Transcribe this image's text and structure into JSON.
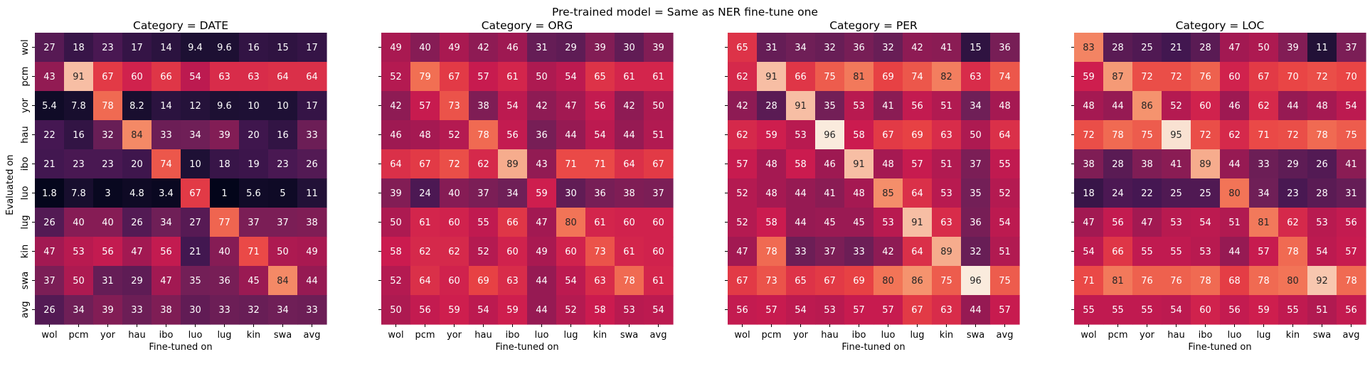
{
  "figure": {
    "suptitle": "Pre-trained model = Same as NER fine-tune one",
    "xlabel": "Fine-tuned on",
    "ylabel": "Evaluated on"
  },
  "chart_data": [
    {
      "type": "heatmap",
      "title": "Category = DATE",
      "x": [
        "wol",
        "pcm",
        "yor",
        "hau",
        "ibo",
        "luo",
        "lug",
        "kin",
        "swa",
        "avg"
      ],
      "y": [
        "wol",
        "pcm",
        "yor",
        "hau",
        "ibo",
        "luo",
        "lug",
        "kin",
        "swa",
        "avg"
      ],
      "values": [
        [
          27,
          18,
          23,
          17,
          14,
          9.4,
          9.6,
          16,
          15,
          17
        ],
        [
          43,
          91,
          67,
          60,
          66,
          54,
          63,
          63,
          64,
          64
        ],
        [
          5.4,
          7.8,
          78,
          8.2,
          14,
          12,
          9.6,
          10,
          10,
          17
        ],
        [
          22,
          16,
          32,
          84,
          33,
          34,
          39,
          20,
          16,
          33
        ],
        [
          21,
          23,
          23,
          20,
          74,
          10,
          18,
          19,
          23,
          26
        ],
        [
          1.8,
          7.8,
          3,
          4.8,
          3.4,
          67,
          1,
          5.6,
          5,
          11
        ],
        [
          26,
          40,
          40,
          26,
          34,
          27,
          77,
          37,
          37,
          38
        ],
        [
          47,
          53,
          56,
          47,
          56,
          21,
          40,
          71,
          50,
          49
        ],
        [
          37,
          50,
          31,
          29,
          47,
          35,
          36,
          45,
          84,
          44
        ],
        [
          26,
          34,
          39,
          33,
          38,
          30,
          33,
          32,
          34,
          33
        ]
      ],
      "xlabel": "Fine-tuned on",
      "ylabel": "Evaluated on",
      "colormap": "rocket"
    },
    {
      "type": "heatmap",
      "title": "Category = ORG",
      "x": [
        "wol",
        "pcm",
        "yor",
        "hau",
        "ibo",
        "luo",
        "lug",
        "kin",
        "swa",
        "avg"
      ],
      "y": [
        "wol",
        "pcm",
        "yor",
        "hau",
        "ibo",
        "luo",
        "lug",
        "kin",
        "swa",
        "avg"
      ],
      "values": [
        [
          49,
          40,
          49,
          42,
          46,
          31,
          29,
          39,
          30,
          39
        ],
        [
          52,
          79,
          67,
          57,
          61,
          50,
          54,
          65,
          61,
          61
        ],
        [
          42,
          57,
          73,
          38,
          54,
          42,
          47,
          56,
          42,
          50
        ],
        [
          46,
          48,
          52,
          78,
          56,
          36,
          44,
          54,
          44,
          51
        ],
        [
          64,
          67,
          72,
          62,
          89,
          43,
          71,
          71,
          64,
          67
        ],
        [
          39,
          24,
          40,
          37,
          34,
          59,
          30,
          36,
          38,
          37
        ],
        [
          50,
          61,
          60,
          55,
          66,
          47,
          80,
          61,
          60,
          60
        ],
        [
          58,
          62,
          62,
          52,
          60,
          49,
          60,
          73,
          61,
          60
        ],
        [
          52,
          64,
          60,
          69,
          63,
          44,
          54,
          63,
          78,
          61
        ],
        [
          50,
          56,
          59,
          54,
          59,
          44,
          52,
          58,
          53,
          54
        ]
      ],
      "xlabel": "Fine-tuned on",
      "colormap": "rocket"
    },
    {
      "type": "heatmap",
      "title": "Category = PER",
      "x": [
        "wol",
        "pcm",
        "yor",
        "hau",
        "ibo",
        "luo",
        "lug",
        "kin",
        "swa",
        "avg"
      ],
      "y": [
        "wol",
        "pcm",
        "yor",
        "hau",
        "ibo",
        "luo",
        "lug",
        "kin",
        "swa",
        "avg"
      ],
      "values": [
        [
          65,
          31,
          34,
          32,
          36,
          32,
          42,
          41,
          15,
          36
        ],
        [
          62,
          91,
          66,
          75,
          81,
          69,
          74,
          82,
          63,
          74
        ],
        [
          42,
          28,
          91,
          35,
          53,
          41,
          56,
          51,
          34,
          48
        ],
        [
          62,
          59,
          53,
          96,
          58,
          67,
          69,
          63,
          50,
          64
        ],
        [
          57,
          48,
          58,
          46,
          91,
          48,
          57,
          51,
          37,
          55
        ],
        [
          52,
          48,
          44,
          41,
          48,
          85,
          64,
          53,
          35,
          52
        ],
        [
          52,
          58,
          44,
          45,
          45,
          53,
          91,
          63,
          36,
          54
        ],
        [
          47,
          78,
          33,
          37,
          33,
          42,
          64,
          89,
          32,
          51
        ],
        [
          67,
          73,
          65,
          67,
          69,
          80,
          86,
          75,
          96,
          75
        ],
        [
          56,
          57,
          54,
          53,
          57,
          57,
          67,
          63,
          44,
          57
        ]
      ],
      "xlabel": "Fine-tuned on",
      "colormap": "rocket"
    },
    {
      "type": "heatmap",
      "title": "Category = LOC",
      "x": [
        "wol",
        "pcm",
        "yor",
        "hau",
        "ibo",
        "luo",
        "lug",
        "kin",
        "swa",
        "avg"
      ],
      "y": [
        "wol",
        "pcm",
        "yor",
        "hau",
        "ibo",
        "luo",
        "lug",
        "kin",
        "swa",
        "avg"
      ],
      "values": [
        [
          83,
          28,
          25,
          21,
          28,
          47,
          50,
          39,
          11,
          37
        ],
        [
          59,
          87,
          72,
          72,
          76,
          60,
          67,
          70,
          72,
          70
        ],
        [
          48,
          44,
          86,
          52,
          60,
          46,
          62,
          44,
          48,
          54
        ],
        [
          72,
          78,
          75,
          95,
          72,
          62,
          71,
          72,
          78,
          75
        ],
        [
          38,
          28,
          38,
          41,
          89,
          44,
          33,
          29,
          26,
          41
        ],
        [
          18,
          24,
          22,
          25,
          25,
          80,
          34,
          23,
          28,
          31
        ],
        [
          47,
          56,
          47,
          53,
          54,
          51,
          81,
          62,
          53,
          56
        ],
        [
          54,
          66,
          55,
          55,
          53,
          44,
          57,
          78,
          54,
          57
        ],
        [
          71,
          81,
          76,
          76,
          78,
          68,
          78,
          80,
          92,
          78
        ],
        [
          55,
          55,
          55,
          54,
          60,
          56,
          59,
          55,
          51,
          56
        ]
      ],
      "xlabel": "Fine-tuned on",
      "colormap": "rocket"
    }
  ]
}
